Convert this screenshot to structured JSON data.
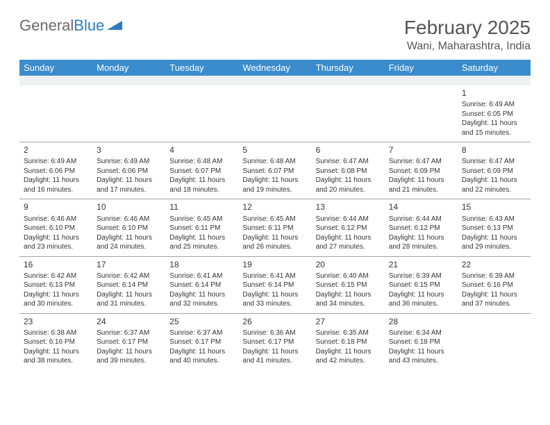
{
  "logo": {
    "word1": "General",
    "word2": "Blue"
  },
  "title": {
    "month_year": "February 2025",
    "location": "Wani, Maharashtra, India"
  },
  "colors": {
    "header_bg": "#3b8ccc",
    "header_text": "#ffffff",
    "stripe_bg": "#eef0f2",
    "border": "#9aa4ad",
    "text": "#333333",
    "logo_gray": "#6b6b6b",
    "logo_blue": "#2b7bbf"
  },
  "day_names": [
    "Sunday",
    "Monday",
    "Tuesday",
    "Wednesday",
    "Thursday",
    "Friday",
    "Saturday"
  ],
  "weeks": [
    [
      null,
      null,
      null,
      null,
      null,
      null,
      {
        "n": "1",
        "sunrise": "Sunrise: 6:49 AM",
        "sunset": "Sunset: 6:05 PM",
        "daylight": "Daylight: 11 hours and 15 minutes."
      }
    ],
    [
      {
        "n": "2",
        "sunrise": "Sunrise: 6:49 AM",
        "sunset": "Sunset: 6:06 PM",
        "daylight": "Daylight: 11 hours and 16 minutes."
      },
      {
        "n": "3",
        "sunrise": "Sunrise: 6:49 AM",
        "sunset": "Sunset: 6:06 PM",
        "daylight": "Daylight: 11 hours and 17 minutes."
      },
      {
        "n": "4",
        "sunrise": "Sunrise: 6:48 AM",
        "sunset": "Sunset: 6:07 PM",
        "daylight": "Daylight: 11 hours and 18 minutes."
      },
      {
        "n": "5",
        "sunrise": "Sunrise: 6:48 AM",
        "sunset": "Sunset: 6:07 PM",
        "daylight": "Daylight: 11 hours and 19 minutes."
      },
      {
        "n": "6",
        "sunrise": "Sunrise: 6:47 AM",
        "sunset": "Sunset: 6:08 PM",
        "daylight": "Daylight: 11 hours and 20 minutes."
      },
      {
        "n": "7",
        "sunrise": "Sunrise: 6:47 AM",
        "sunset": "Sunset: 6:09 PM",
        "daylight": "Daylight: 11 hours and 21 minutes."
      },
      {
        "n": "8",
        "sunrise": "Sunrise: 6:47 AM",
        "sunset": "Sunset: 6:09 PM",
        "daylight": "Daylight: 11 hours and 22 minutes."
      }
    ],
    [
      {
        "n": "9",
        "sunrise": "Sunrise: 6:46 AM",
        "sunset": "Sunset: 6:10 PM",
        "daylight": "Daylight: 11 hours and 23 minutes."
      },
      {
        "n": "10",
        "sunrise": "Sunrise: 6:46 AM",
        "sunset": "Sunset: 6:10 PM",
        "daylight": "Daylight: 11 hours and 24 minutes."
      },
      {
        "n": "11",
        "sunrise": "Sunrise: 6:45 AM",
        "sunset": "Sunset: 6:11 PM",
        "daylight": "Daylight: 11 hours and 25 minutes."
      },
      {
        "n": "12",
        "sunrise": "Sunrise: 6:45 AM",
        "sunset": "Sunset: 6:11 PM",
        "daylight": "Daylight: 11 hours and 26 minutes."
      },
      {
        "n": "13",
        "sunrise": "Sunrise: 6:44 AM",
        "sunset": "Sunset: 6:12 PM",
        "daylight": "Daylight: 11 hours and 27 minutes."
      },
      {
        "n": "14",
        "sunrise": "Sunrise: 6:44 AM",
        "sunset": "Sunset: 6:12 PM",
        "daylight": "Daylight: 11 hours and 28 minutes."
      },
      {
        "n": "15",
        "sunrise": "Sunrise: 6:43 AM",
        "sunset": "Sunset: 6:13 PM",
        "daylight": "Daylight: 11 hours and 29 minutes."
      }
    ],
    [
      {
        "n": "16",
        "sunrise": "Sunrise: 6:42 AM",
        "sunset": "Sunset: 6:13 PM",
        "daylight": "Daylight: 11 hours and 30 minutes."
      },
      {
        "n": "17",
        "sunrise": "Sunrise: 6:42 AM",
        "sunset": "Sunset: 6:14 PM",
        "daylight": "Daylight: 11 hours and 31 minutes."
      },
      {
        "n": "18",
        "sunrise": "Sunrise: 6:41 AM",
        "sunset": "Sunset: 6:14 PM",
        "daylight": "Daylight: 11 hours and 32 minutes."
      },
      {
        "n": "19",
        "sunrise": "Sunrise: 6:41 AM",
        "sunset": "Sunset: 6:14 PM",
        "daylight": "Daylight: 11 hours and 33 minutes."
      },
      {
        "n": "20",
        "sunrise": "Sunrise: 6:40 AM",
        "sunset": "Sunset: 6:15 PM",
        "daylight": "Daylight: 11 hours and 34 minutes."
      },
      {
        "n": "21",
        "sunrise": "Sunrise: 6:39 AM",
        "sunset": "Sunset: 6:15 PM",
        "daylight": "Daylight: 11 hours and 36 minutes."
      },
      {
        "n": "22",
        "sunrise": "Sunrise: 6:39 AM",
        "sunset": "Sunset: 6:16 PM",
        "daylight": "Daylight: 11 hours and 37 minutes."
      }
    ],
    [
      {
        "n": "23",
        "sunrise": "Sunrise: 6:38 AM",
        "sunset": "Sunset: 6:16 PM",
        "daylight": "Daylight: 11 hours and 38 minutes."
      },
      {
        "n": "24",
        "sunrise": "Sunrise: 6:37 AM",
        "sunset": "Sunset: 6:17 PM",
        "daylight": "Daylight: 11 hours and 39 minutes."
      },
      {
        "n": "25",
        "sunrise": "Sunrise: 6:37 AM",
        "sunset": "Sunset: 6:17 PM",
        "daylight": "Daylight: 11 hours and 40 minutes."
      },
      {
        "n": "26",
        "sunrise": "Sunrise: 6:36 AM",
        "sunset": "Sunset: 6:17 PM",
        "daylight": "Daylight: 11 hours and 41 minutes."
      },
      {
        "n": "27",
        "sunrise": "Sunrise: 6:35 AM",
        "sunset": "Sunset: 6:18 PM",
        "daylight": "Daylight: 11 hours and 42 minutes."
      },
      {
        "n": "28",
        "sunrise": "Sunrise: 6:34 AM",
        "sunset": "Sunset: 6:18 PM",
        "daylight": "Daylight: 11 hours and 43 minutes."
      },
      null
    ]
  ]
}
